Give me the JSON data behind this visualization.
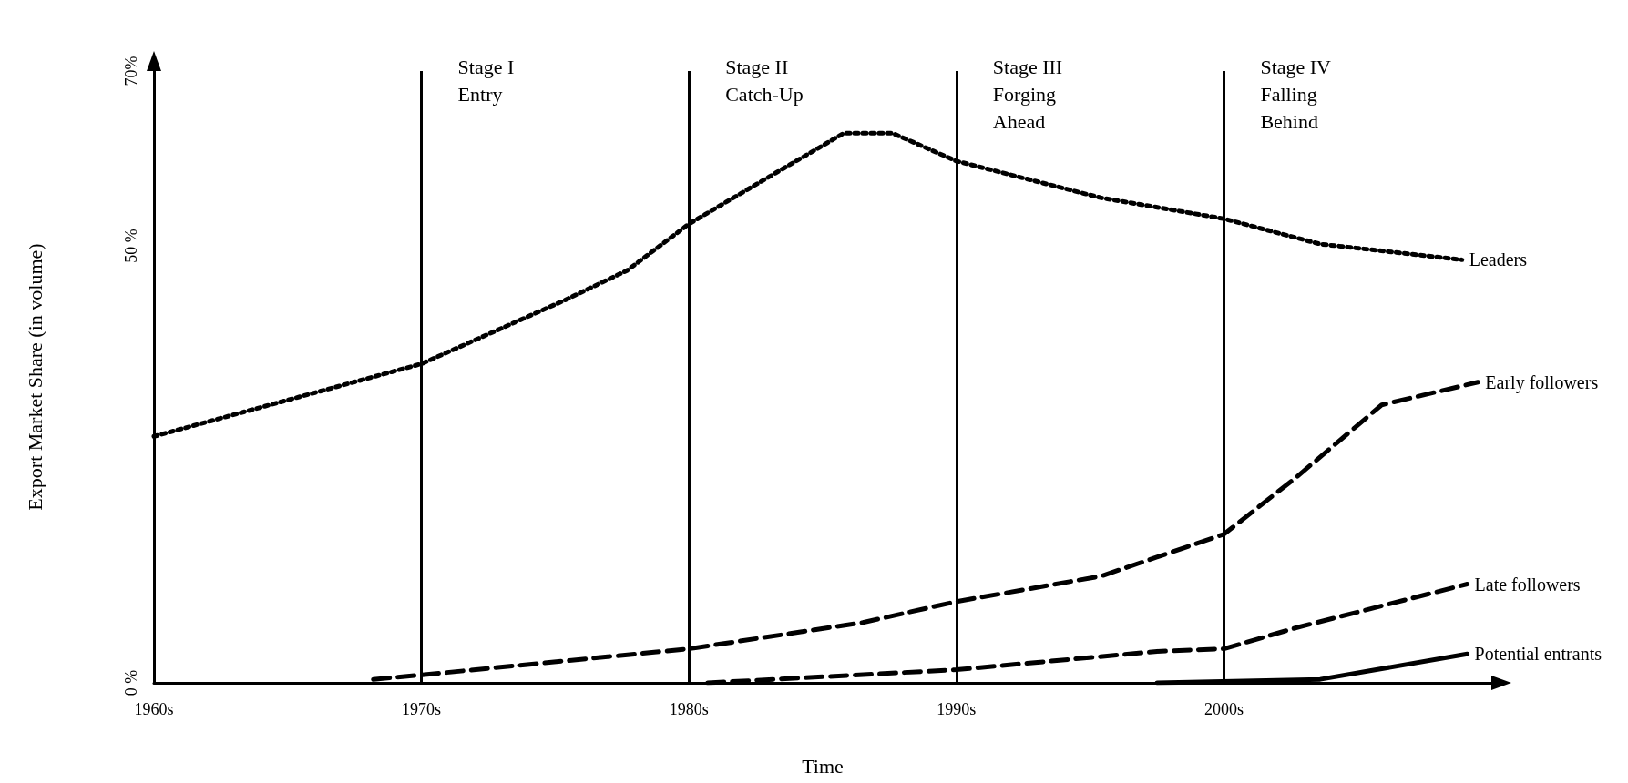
{
  "chart_data": {
    "type": "line",
    "xlabel": "Time",
    "ylabel": "Export Market Share (in volume)",
    "xlim": [
      1960,
      2010
    ],
    "xticks": [
      {
        "value": 1960,
        "label": "1960s"
      },
      {
        "value": 1970,
        "label": "1970s"
      },
      {
        "value": 1980,
        "label": "1980s"
      },
      {
        "value": 1990,
        "label": "1990s"
      },
      {
        "value": 2000,
        "label": "2000s"
      }
    ],
    "ylim": [
      0,
      70
    ],
    "yticks": [
      {
        "value": 0,
        "label": "0 %"
      },
      {
        "value": 50,
        "label": "50 %"
      },
      {
        "value": 70,
        "label": "70%"
      }
    ],
    "series": [
      {
        "name": "Leaders",
        "color": "#000000",
        "line_style": "dotted",
        "x": [
          1960,
          1966.5,
          1970,
          1975.3,
          1977.7,
          1980,
          1983.0,
          1985.8,
          1987.6,
          1990,
          1995.4,
          2000,
          2003.6,
          2008.9
        ],
        "values": [
          28.2,
          33.6,
          36.5,
          43.7,
          47.2,
          52.5,
          57.9,
          62.9,
          62.9,
          59.7,
          55.5,
          53.1,
          50.2,
          48.4
        ]
      },
      {
        "name": "Early followers",
        "color": "#000000",
        "line_style": "dashed",
        "x": [
          1968.2,
          1970,
          1980,
          1986.5,
          1990,
          1995.4,
          2000,
          2002.7,
          2005.9,
          2009.5
        ],
        "values": [
          0.4,
          0.9,
          3.9,
          6.9,
          9.3,
          12.2,
          17.0,
          23.5,
          31.8,
          34.4
        ]
      },
      {
        "name": "Late followers",
        "color": "#000000",
        "line_style": "dashed",
        "x": [
          1980.7,
          1990,
          1997.5,
          2000,
          2002.7,
          2009.1
        ],
        "values": [
          0,
          1.5,
          3.6,
          3.9,
          6.3,
          11.3
        ]
      },
      {
        "name": "Potential entrants",
        "color": "#000000",
        "line_style": "solid",
        "x": [
          1997.5,
          2003.6,
          2009.1
        ],
        "values": [
          0,
          0.4,
          3.3
        ]
      }
    ],
    "ref_lines": [
      {
        "axis": "x",
        "value": 1970,
        "label": "Stage I\nEntry"
      },
      {
        "axis": "x",
        "value": 1980,
        "label": "Stage II\nCatch-Up"
      },
      {
        "axis": "x",
        "value": 1990,
        "label": "Stage III\nForging\nAhead"
      },
      {
        "axis": "x",
        "value": 2000,
        "label": "Stage IV\nFalling\nBehind"
      }
    ],
    "grid": false,
    "legend": false,
    "marker": "none"
  }
}
